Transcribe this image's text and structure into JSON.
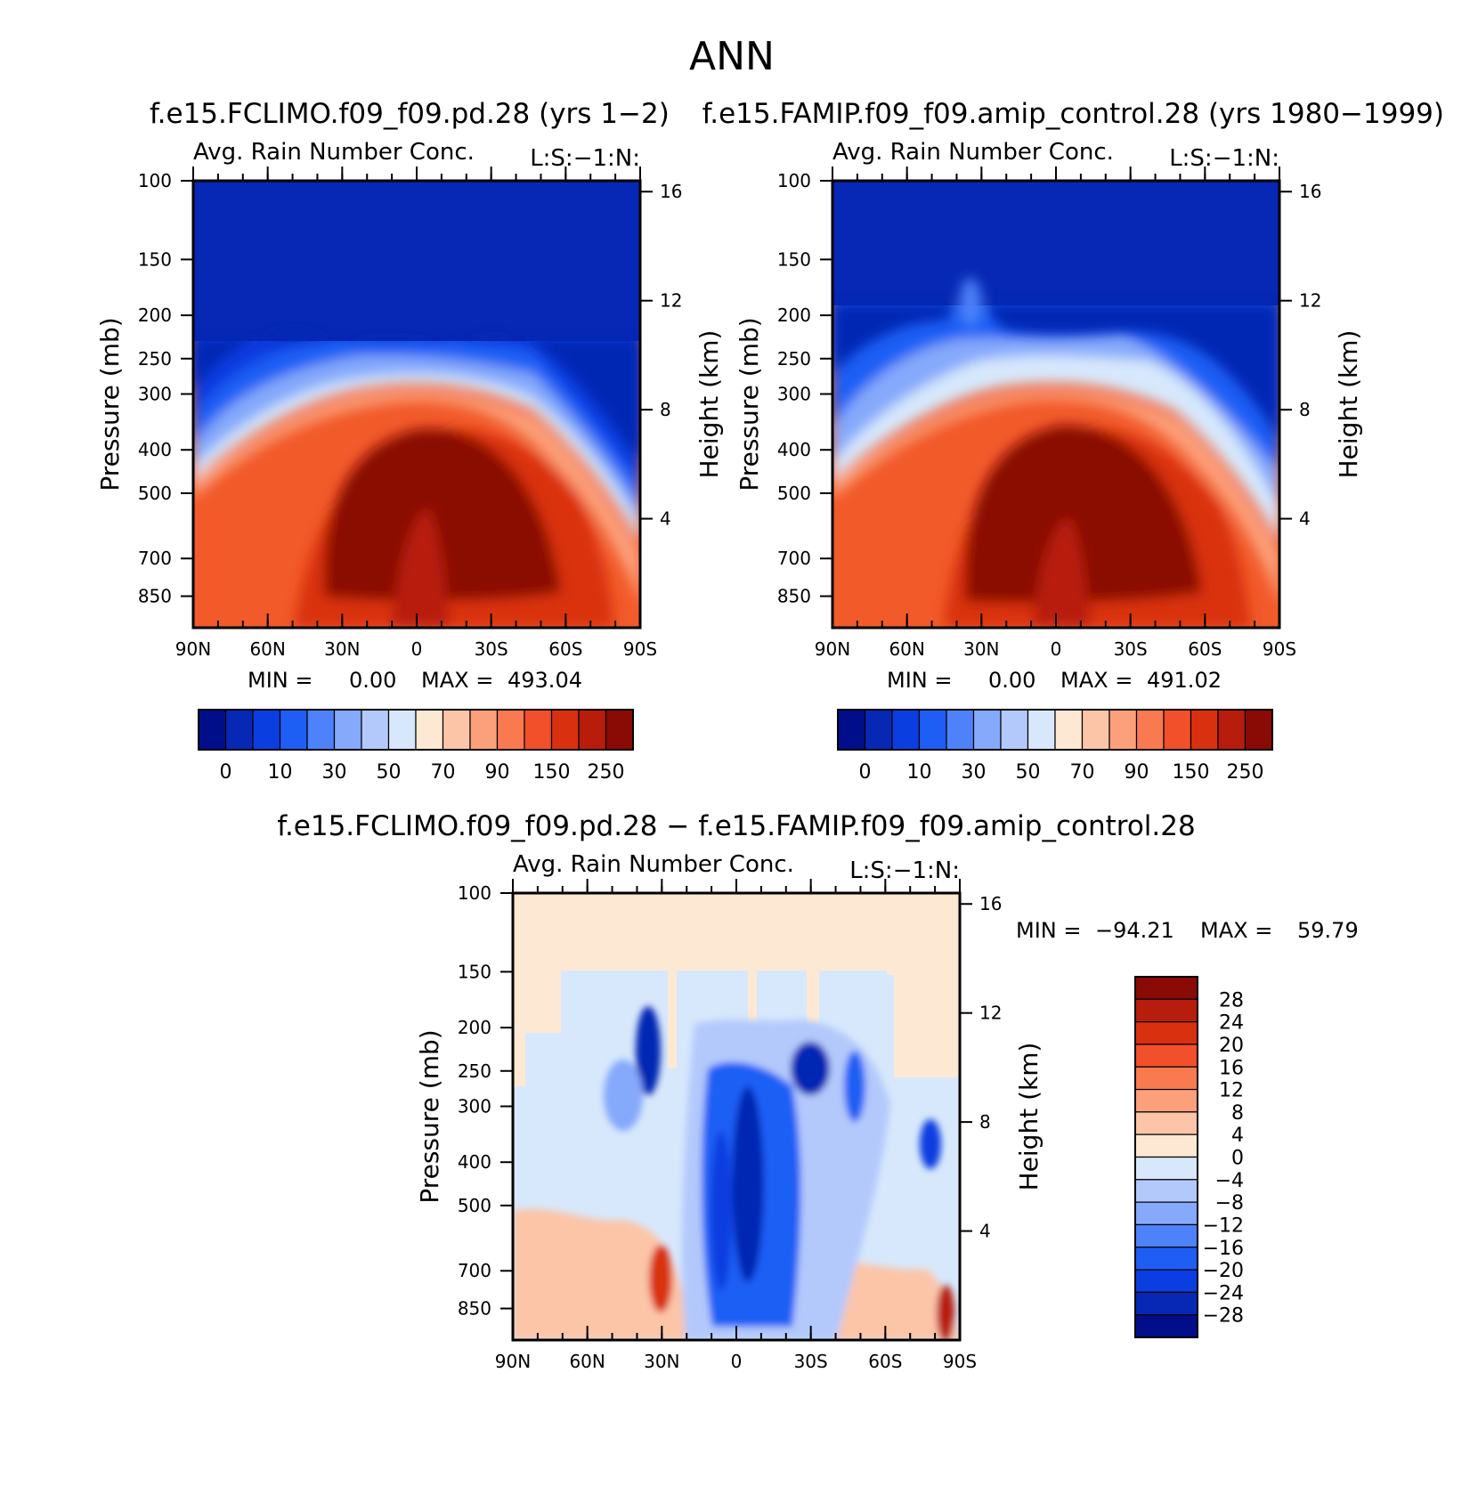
{
  "figure": {
    "title": "ANN"
  },
  "chart_data": [
    {
      "type": "heatmap",
      "case_title": "f.e15.FCLIMO.f09_f09.pd.28 (yrs 1−2)",
      "title": "Avg. Rain Number Conc.",
      "title_right": "L:S:−1:N:",
      "ylabel": "Pressure (mb)",
      "y2label": "Height (km)",
      "x_tick_labels": [
        "90N",
        "60N",
        "30N",
        "0",
        "30S",
        "60S",
        "90S"
      ],
      "x_values": [
        90,
        60,
        30,
        0,
        -30,
        -60,
        -90
      ],
      "y_tick_labels": [
        "100",
        "150",
        "200",
        "250",
        "300",
        "400",
        "500",
        "700",
        "850"
      ],
      "y_values": [
        100,
        150,
        200,
        250,
        300,
        400,
        500,
        700,
        850
      ],
      "y_scale": "log",
      "y2_tick_labels": [
        "16",
        "12",
        "8",
        "4"
      ],
      "y2_values": [
        16,
        12,
        8,
        4
      ],
      "min_label": "MIN =",
      "min_value": "0.00",
      "max_label": "MAX =",
      "max_value": "493.04",
      "colorbar_tick_labels": [
        "0",
        "10",
        "30",
        "50",
        "70",
        "90",
        "150",
        "250"
      ],
      "colors": [
        "#000f89",
        "#0628b4",
        "#0a3ee0",
        "#1f5ef5",
        "#4d82fa",
        "#85a9fb",
        "#b3c9fc",
        "#d7e8fc",
        "#fde9d3",
        "#fcc5a8",
        "#fba07b",
        "#fa7a4f",
        "#f2502a",
        "#d93010",
        "#b71c0c",
        "#8a0a06"
      ]
    },
    {
      "type": "heatmap",
      "case_title": "f.e15.FAMIP.f09_f09.amip_control.28 (yrs 1980−1999)",
      "title": "Avg. Rain Number Conc.",
      "title_right": "L:S:−1:N:",
      "ylabel": "Pressure (mb)",
      "y2label": "Height (km)",
      "x_tick_labels": [
        "90N",
        "60N",
        "30N",
        "0",
        "30S",
        "60S",
        "90S"
      ],
      "x_values": [
        90,
        60,
        30,
        0,
        -30,
        -60,
        -90
      ],
      "y_tick_labels": [
        "100",
        "150",
        "200",
        "250",
        "300",
        "400",
        "500",
        "700",
        "850"
      ],
      "y_values": [
        100,
        150,
        200,
        250,
        300,
        400,
        500,
        700,
        850
      ],
      "y_scale": "log",
      "y2_tick_labels": [
        "16",
        "12",
        "8",
        "4"
      ],
      "y2_values": [
        16,
        12,
        8,
        4
      ],
      "min_label": "MIN =",
      "min_value": "0.00",
      "max_label": "MAX =",
      "max_value": "491.02",
      "colorbar_tick_labels": [
        "0",
        "10",
        "30",
        "50",
        "70",
        "90",
        "150",
        "250"
      ],
      "colors": [
        "#000f89",
        "#0628b4",
        "#0a3ee0",
        "#1f5ef5",
        "#4d82fa",
        "#85a9fb",
        "#b3c9fc",
        "#d7e8fc",
        "#fde9d3",
        "#fcc5a8",
        "#fba07b",
        "#fa7a4f",
        "#f2502a",
        "#d93010",
        "#b71c0c",
        "#8a0a06"
      ]
    },
    {
      "type": "heatmap",
      "case_title": "f.e15.FCLIMO.f09_f09.pd.28 − f.e15.FAMIP.f09_f09.amip_control.28",
      "title": "Avg. Rain Number Conc.",
      "title_right": "L:S:−1:N:",
      "ylabel": "Pressure (mb)",
      "y2label": "Height (km)",
      "x_tick_labels": [
        "90N",
        "60N",
        "30N",
        "0",
        "30S",
        "60S",
        "90S"
      ],
      "x_values": [
        90,
        60,
        30,
        0,
        -30,
        -60,
        -90
      ],
      "y_tick_labels": [
        "100",
        "150",
        "200",
        "250",
        "300",
        "400",
        "500",
        "700",
        "850"
      ],
      "y_values": [
        100,
        150,
        200,
        250,
        300,
        400,
        500,
        700,
        850
      ],
      "y_scale": "log",
      "y2_tick_labels": [
        "16",
        "12",
        "8",
        "4"
      ],
      "y2_values": [
        16,
        12,
        8,
        4
      ],
      "min_label": "MIN =",
      "min_value": "−94.21",
      "max_label": "MAX =",
      "max_value": "59.79",
      "colorbar_tick_labels": [
        "28",
        "24",
        "20",
        "16",
        "12",
        "8",
        "4",
        "0",
        "−4",
        "−8",
        "−12",
        "−16",
        "−20",
        "−24",
        "−28"
      ],
      "colors": [
        "#8a0a06",
        "#b71c0c",
        "#d93010",
        "#f2502a",
        "#fa7a4f",
        "#fba07b",
        "#fcc5a8",
        "#fde9d3",
        "#d7e8fc",
        "#b3c9fc",
        "#85a9fb",
        "#4d82fa",
        "#1f5ef5",
        "#0a3ee0",
        "#0628b4",
        "#000f89"
      ]
    }
  ]
}
